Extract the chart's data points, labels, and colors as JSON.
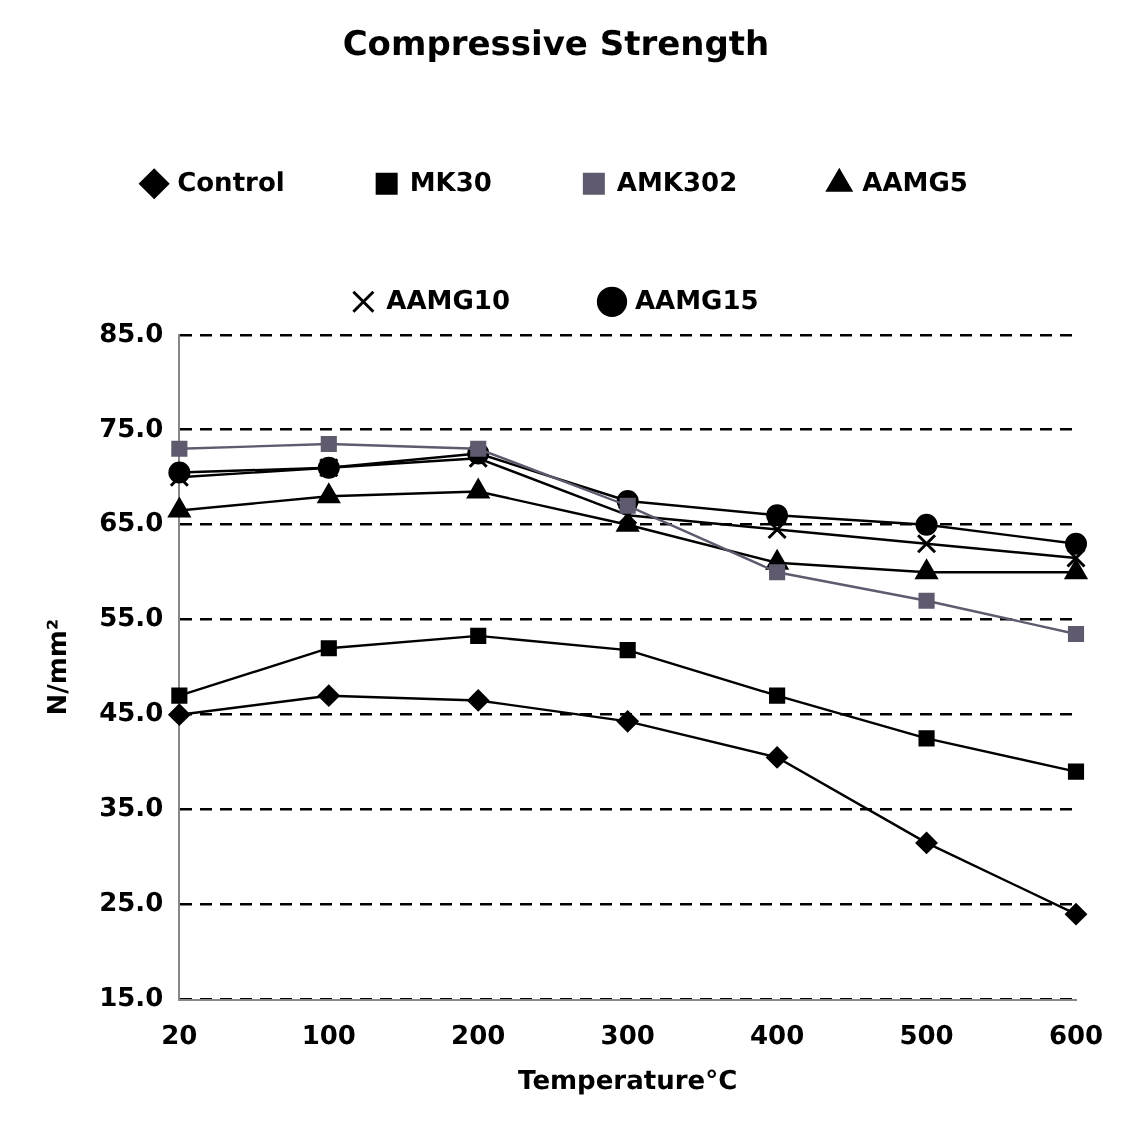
{
  "chart_data": {
    "type": "line",
    "title": "Compressive Strength",
    "xlabel": "Temperature°C",
    "ylabel": "N/mm²",
    "categories": [
      "20",
      "100",
      "200",
      "300",
      "400",
      "500",
      "600"
    ],
    "series": [
      {
        "name": "Control",
        "color": "#000000",
        "marker": "diamond",
        "values": [
          45,
          47,
          46.5,
          44.3,
          40.5,
          31.5,
          24
        ]
      },
      {
        "name": "MK30",
        "color": "#000000",
        "marker": "square",
        "values": [
          47,
          52,
          53.3,
          51.8,
          47,
          42.5,
          39
        ]
      },
      {
        "name": "AMK302",
        "color": "#5f5a6e",
        "marker": "square",
        "values": [
          73,
          73.5,
          73,
          67,
          60,
          57,
          53.5
        ]
      },
      {
        "name": "AAMG5",
        "color": "#000000",
        "marker": "triangle",
        "values": [
          66.5,
          68,
          68.5,
          65,
          61,
          60,
          60
        ]
      },
      {
        "name": "AAMG10",
        "color": "#000000",
        "marker": "cross",
        "values": [
          70,
          71,
          72,
          66,
          64.5,
          63,
          61.5
        ]
      },
      {
        "name": "AAMG15",
        "color": "#000000",
        "marker": "circle",
        "values": [
          70.5,
          71,
          72.5,
          67.5,
          66,
          65,
          63
        ]
      }
    ],
    "ylim": [
      15,
      85
    ],
    "yticks": [
      {
        "value": 15,
        "label": "15.0"
      },
      {
        "value": 25,
        "label": "25.0"
      },
      {
        "value": 35,
        "label": "35.0"
      },
      {
        "value": 45,
        "label": "45.0"
      },
      {
        "value": 55,
        "label": "55.0"
      },
      {
        "value": 65,
        "label": "65.0"
      },
      {
        "value": 75,
        "label": "75.0"
      },
      {
        "value": 85,
        "label": "85.0"
      }
    ],
    "grid": "y",
    "legend": "top"
  }
}
